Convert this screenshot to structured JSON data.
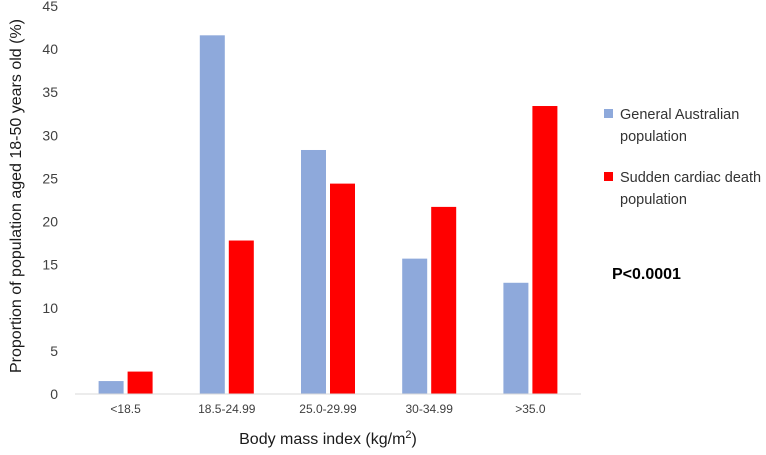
{
  "chart_data": {
    "type": "bar",
    "categories": [
      "<18.5",
      "18.5-24.99",
      "25.0-29.99",
      "30-34.99",
      ">35.0"
    ],
    "series": [
      {
        "name_lines": [
          "General Australian",
          "population"
        ],
        "values": [
          1.5,
          41.6,
          28.3,
          15.7,
          12.9
        ],
        "color": "#8EA9DB"
      },
      {
        "name_lines": [
          "Sudden cardiac death",
          "population"
        ],
        "values": [
          2.6,
          17.8,
          24.4,
          21.7,
          33.4
        ],
        "color": "#FF0000"
      }
    ],
    "xlabel_main": "Body mass index (kg/m",
    "xlabel_sup": "2",
    "xlabel_end": ")",
    "ylabel": "Proportion of population aged 18-50 years old (%)",
    "ylim": [
      0,
      45
    ],
    "yticks": [
      0,
      5,
      10,
      15,
      20,
      25,
      30,
      35,
      40,
      45
    ],
    "grid": false,
    "legend_position": "right",
    "annotation": "P<0.0001"
  }
}
